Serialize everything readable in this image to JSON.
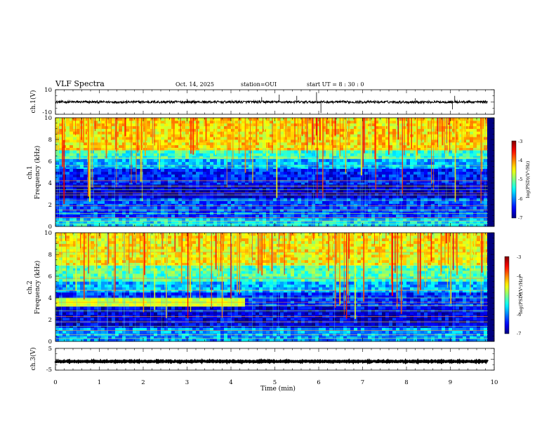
{
  "header": {
    "title": "VLF Spectra",
    "date": "Oct. 14, 2025",
    "station": "station=OUI",
    "start_ut": "start UT =  8 : 30 : 0"
  },
  "chart_data": [
    {
      "type": "line",
      "name": "ch1-waveform",
      "ylabel": "ch.1(V)",
      "ylim": [
        -10,
        10
      ],
      "yticks": [
        10,
        -10
      ],
      "xlim": [
        0,
        10
      ],
      "baseline": 0,
      "noise_amplitude": 1,
      "spikes": [
        {
          "x": 4.7,
          "y": 4
        },
        {
          "x": 5.1,
          "y": 6
        },
        {
          "x": 5.5,
          "y": 5
        },
        {
          "x": 5.95,
          "y": 8
        },
        {
          "x": 6.05,
          "y": -9
        },
        {
          "x": 9.05,
          "y": -6
        },
        {
          "x": 9.1,
          "y": 5
        },
        {
          "x": 8.2,
          "y": 3
        },
        {
          "x": 3.0,
          "y": 2.5
        }
      ]
    },
    {
      "type": "heatmap",
      "name": "ch1-spectrogram",
      "ylabel": "Frequency (kHz)",
      "channel_label": "ch.1",
      "xlim": [
        0,
        10
      ],
      "ylim": [
        0,
        10
      ],
      "yticks": [
        0,
        2,
        4,
        6,
        8,
        10
      ],
      "colorbar": {
        "label": "log(PSD)(V²/Hz)",
        "range": [
          -7,
          -3
        ],
        "ticks": [
          -3,
          -4,
          -5,
          -6,
          -7
        ]
      },
      "bands": [
        {
          "f": [
            7.0,
            10.0
          ],
          "v": -4.4
        },
        {
          "f": [
            6.0,
            7.0
          ],
          "v": -5.3
        },
        {
          "f": [
            5.2,
            6.0
          ],
          "v": -5.8
        },
        {
          "f": [
            3.8,
            5.2
          ],
          "v": -6.4
        },
        {
          "f": [
            2.6,
            3.8
          ],
          "v": -6.7
        },
        {
          "f": [
            0.6,
            2.6
          ],
          "v": -6.2
        },
        {
          "f": [
            0.0,
            0.6
          ],
          "v": -5.6
        }
      ],
      "lines_khz": [
        7.1,
        6.3,
        5.6,
        4.2,
        3.7,
        3.4,
        3.1,
        2.9,
        2.4,
        1.9,
        1.5,
        1.2,
        0.8,
        0.5,
        0.25
      ]
    },
    {
      "type": "heatmap",
      "name": "ch2-spectrogram",
      "ylabel": "Frequency (kHz)",
      "channel_label": "ch.2",
      "xlim": [
        0,
        10
      ],
      "ylim": [
        0,
        10
      ],
      "yticks": [
        0,
        2,
        4,
        6,
        8,
        10
      ],
      "colorbar": {
        "label": "log(PSD)(V²/Hz)",
        "range": [
          -7,
          -3
        ],
        "ticks": [
          -3,
          -4,
          -5,
          -6,
          -7
        ]
      },
      "bands": [
        {
          "f": [
            7.0,
            10.0
          ],
          "v": -4.5
        },
        {
          "f": [
            5.5,
            7.0
          ],
          "v": -5.2
        },
        {
          "f": [
            4.5,
            5.5
          ],
          "v": -5.8
        },
        {
          "f": [
            3.0,
            4.5
          ],
          "v": -6.3
        },
        {
          "f": [
            1.2,
            3.0
          ],
          "v": -6.6
        },
        {
          "f": [
            0.0,
            1.2
          ],
          "v": -5.9
        }
      ],
      "lines_khz": [
        8.2,
        7.0,
        6.5,
        5.8,
        4.7,
        4.0,
        3.6,
        3.3,
        2.8,
        2.3,
        1.8,
        1.4,
        1.0,
        0.6,
        0.3
      ]
    },
    {
      "type": "line",
      "name": "ch3-waveform",
      "ylabel": "ch.3(V)",
      "ylim": [
        -5,
        5
      ],
      "yticks": [
        5,
        -5
      ],
      "xlim": [
        0,
        10
      ],
      "baseline": -1,
      "noise_amplitude": 0.2
    }
  ],
  "xaxis": {
    "label": "Time (min)",
    "ticks": [
      0,
      1,
      2,
      3,
      4,
      5,
      6,
      7,
      8,
      9,
      10
    ]
  },
  "colors": {
    "background": "#ffffff",
    "axis": "#000000"
  }
}
